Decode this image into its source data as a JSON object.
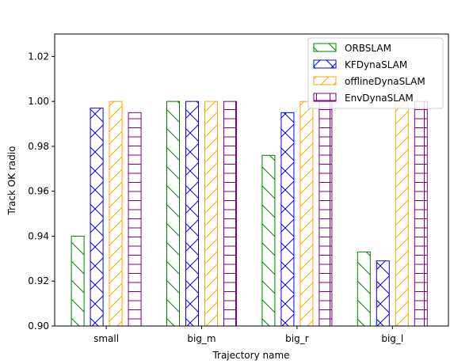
{
  "chart_data": {
    "type": "bar",
    "xlabel": "Trajectory name",
    "ylabel": "Track OK radio",
    "ylim": [
      0.9,
      1.03
    ],
    "yticks": [
      "0.90",
      "0.92",
      "0.94",
      "0.96",
      "0.98",
      "1.00",
      "1.02"
    ],
    "categories": [
      "small",
      "big_m",
      "big_r",
      "big_l"
    ],
    "series": [
      {
        "name": "ORBSLAM",
        "color": "#008000",
        "hatch": "back-diagonal",
        "values": [
          0.94,
          1.0,
          0.976,
          0.933
        ]
      },
      {
        "name": "KFDynaSLAM",
        "color": "#0000ff",
        "hatch": "cross-diagonal",
        "values": [
          0.997,
          1.0,
          0.995,
          0.929
        ]
      },
      {
        "name": "offlineDynaSLAM",
        "color": "#ffa500",
        "hatch": "forward-diagonal",
        "values": [
          1.0,
          1.0,
          1.0,
          1.0
        ]
      },
      {
        "name": "EnvDynaSLAM",
        "color": "#800080",
        "hatch": "grid",
        "values": [
          0.995,
          1.0,
          1.0,
          1.0
        ]
      }
    ],
    "legend_position": "top-right",
    "grid": false
  }
}
